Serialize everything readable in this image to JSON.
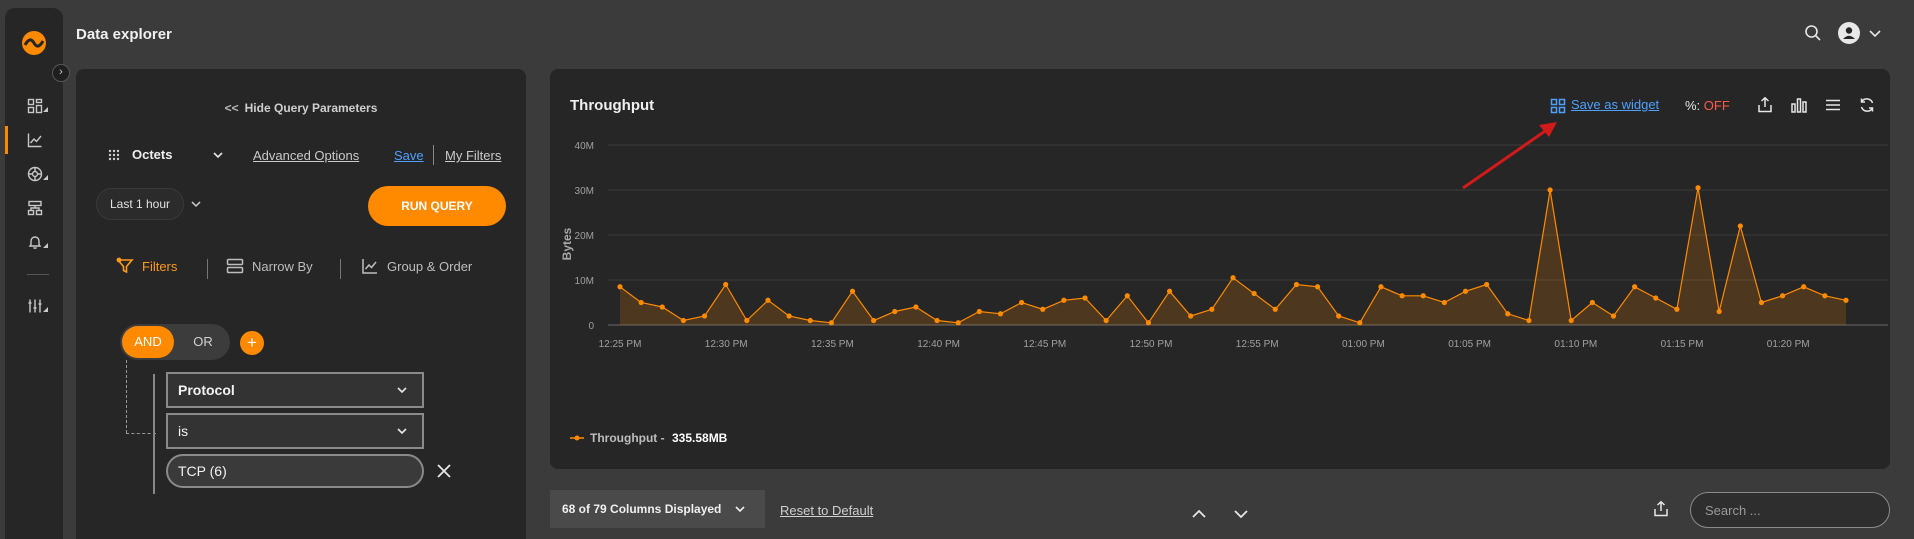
{
  "header": {
    "title": "Data explorer"
  },
  "sidebar": {
    "items": [
      {
        "name": "dashboard-icon"
      },
      {
        "name": "chart-line-icon"
      },
      {
        "name": "globe-icon"
      },
      {
        "name": "sitemap-icon"
      },
      {
        "name": "bell-icon"
      },
      {
        "name": "sliders-icon"
      }
    ]
  },
  "query": {
    "hide_label": "Hide Query Parameters",
    "metric": "Octets",
    "advanced_options": "Advanced Options",
    "save": "Save",
    "my_filters": "My Filters",
    "time_range": "Last 1 hour",
    "run": "RUN QUERY",
    "tabs": {
      "filters": "Filters",
      "narrow_by": "Narrow By",
      "group_order": "Group & Order"
    },
    "logic": {
      "and": "AND",
      "or": "OR",
      "add": "+"
    },
    "filter": {
      "field": "Protocol",
      "operator": "is",
      "value": "TCP (6)"
    }
  },
  "chart_panel": {
    "title": "Throughput",
    "save_widget": "Save as widget",
    "percent_label": "%:",
    "percent_value": "OFF",
    "legend": {
      "name": "Throughput",
      "sep": " - ",
      "total": "335.58MB"
    }
  },
  "chart_data": {
    "type": "area",
    "title": "Throughput",
    "ylabel": "Bytes",
    "ylim": [
      0,
      40
    ],
    "yunit": "M",
    "yticks": [
      "0",
      "10M",
      "20M",
      "30M",
      "40M"
    ],
    "xticks": [
      "12:25 PM",
      "12:30 PM",
      "12:35 PM",
      "12:40 PM",
      "12:45 PM",
      "12:50 PM",
      "12:55 PM",
      "01:00 PM",
      "01:05 PM",
      "01:10 PM",
      "01:15 PM",
      "01:20 PM"
    ],
    "series": [
      {
        "name": "Throughput",
        "color": "#ff8a00",
        "values": [
          8.5,
          5,
          4,
          1,
          2,
          9,
          1,
          5.5,
          2,
          1,
          0.5,
          7.5,
          1,
          3,
          4,
          1,
          0.5,
          3,
          2.5,
          5,
          3.5,
          5.5,
          6,
          1,
          6.5,
          0.5,
          7.5,
          2,
          3.5,
          10.5,
          7,
          3.5,
          9,
          8.5,
          2,
          0.5,
          8.5,
          6.5,
          6.5,
          5,
          7.5,
          9,
          2.5,
          1,
          30,
          1,
          5,
          2,
          8.5,
          6,
          3.5,
          30.5,
          3,
          22,
          5,
          6.5,
          8.5,
          6.5,
          5.5
        ]
      }
    ]
  },
  "bottom": {
    "columns_displayed": "68 of 79 Columns Displayed",
    "reset": "Reset to Default",
    "search_placeholder": "Search ..."
  }
}
